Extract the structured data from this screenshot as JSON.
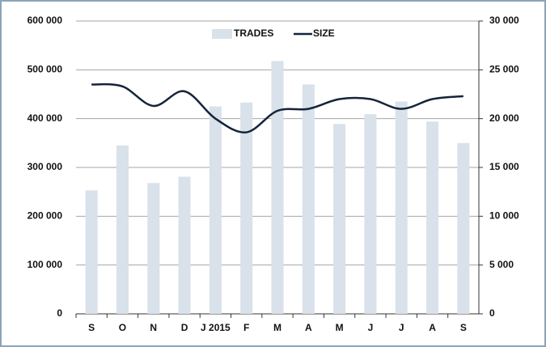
{
  "chart_data": {
    "type": "bar",
    "categories": [
      "S",
      "O",
      "N",
      "D",
      "J 2015",
      "F",
      "M",
      "A",
      "M",
      "J",
      "J",
      "A",
      "S"
    ],
    "series": [
      {
        "name": "TRADES",
        "color": "#d9e1ea",
        "values": [
          253000,
          345000,
          268000,
          281000,
          425000,
          433000,
          518000,
          470000,
          389000,
          409000,
          435000,
          394000,
          350000
        ]
      },
      {
        "name": "SIZE",
        "color": "#15243a",
        "axis": "y2",
        "type": "line",
        "values": [
          23500,
          23300,
          21300,
          22800,
          20000,
          18600,
          20800,
          21000,
          22000,
          22000,
          21000,
          22000,
          22300
        ]
      }
    ],
    "ylim": [
      0,
      600000
    ],
    "yticks": [
      0,
      {
        "value": 100000,
        "label": "100 000"
      },
      {
        "value": 200000,
        "label": "200 000"
      },
      {
        "value": 300000,
        "label": "300 000"
      },
      {
        "value": 400000,
        "label": "400 000"
      },
      {
        "value": 500000,
        "label": "500 000"
      },
      {
        "value": 600000,
        "label": "600 000"
      }
    ],
    "y2lim": [
      0,
      30000
    ],
    "y2ticks": [
      0,
      {
        "value": 5000,
        "label": "5 000"
      },
      {
        "value": 10000,
        "label": "10 000"
      },
      {
        "value": 15000,
        "label": "15 000"
      },
      {
        "value": 20000,
        "label": "20 000"
      },
      {
        "value": 25000,
        "label": "25 000"
      },
      {
        "value": 30000,
        "label": "30 000"
      }
    ],
    "grid": true,
    "legend": "top"
  }
}
